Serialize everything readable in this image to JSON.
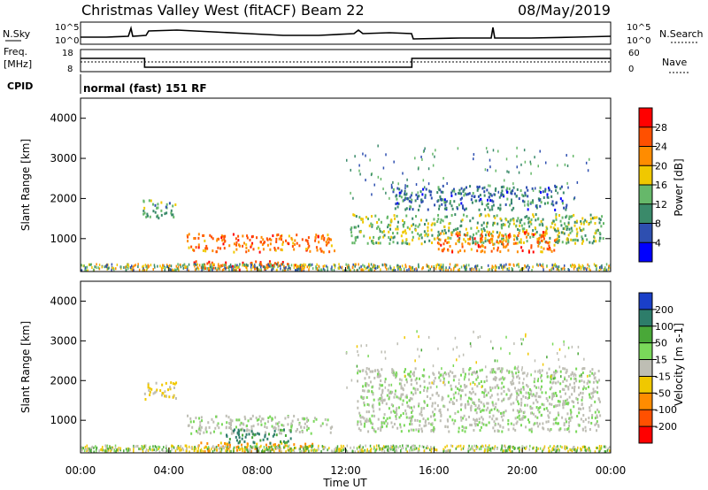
{
  "header": {
    "station": "Christmas Valley West (fitACF)",
    "beam": "Beam 22",
    "date": "08/May/2019"
  },
  "noise_panel": {
    "left_label": "N.Sky",
    "right_label": "N.Search",
    "tick_top": "10^5",
    "tick_bottom": "10^0"
  },
  "freq_panel": {
    "left_label_1": "Freq.",
    "left_label_2": "[MHz]",
    "left_tick_top": "18",
    "left_tick_bottom": "8",
    "right_label": "Nave",
    "right_tick_top": "60",
    "right_tick_bottom": "0"
  },
  "cpid_panel": {
    "label": "CPID",
    "value": "normal (fast) 151 RF"
  },
  "power_panel": {
    "ylabel": "Slant Range [km]",
    "yticks": [
      "1000",
      "2000",
      "3000",
      "4000"
    ],
    "cbar_label": "Power [dB]",
    "cbar_ticks": [
      "4",
      "8",
      "12",
      "16",
      "20",
      "24",
      "28"
    ],
    "cbar_colors": [
      "#0000ff",
      "#2e4fb0",
      "#3a8a6a",
      "#66b86a",
      "#f0c800",
      "#ff8c00",
      "#ff5000",
      "#ff0000"
    ]
  },
  "velocity_panel": {
    "ylabel": "Slant Range [km]",
    "yticks": [
      "1000",
      "2000",
      "3000",
      "4000"
    ],
    "cbar_label": "Velocity [m s-1]",
    "cbar_ticks": [
      "200",
      "100",
      "50",
      "15",
      "-15",
      "-50",
      "-100",
      "-200"
    ],
    "cbar_colors": [
      "#1a3fc8",
      "#2d7d6a",
      "#49a838",
      "#7ad85a",
      "#bebeb4",
      "#f0c800",
      "#ff8c00",
      "#ff5000",
      "#ff0000"
    ]
  },
  "x_axis": {
    "ticks": [
      "00:00",
      "04:00",
      "08:00",
      "12:00",
      "16:00",
      "20:00",
      "00:00"
    ],
    "label": "Time UT"
  },
  "chart_data": {
    "type": "heatmap",
    "x_range_hours": [
      0,
      24
    ],
    "y_range_km": [
      180,
      4500
    ],
    "frequency_mhz": [
      {
        "start_h": 0,
        "end_h": 2.9,
        "value": 14
      },
      {
        "start_h": 2.9,
        "end_h": 15.0,
        "value": 10
      },
      {
        "start_h": 15.0,
        "end_h": 24,
        "value": 14
      }
    ],
    "power_regions_db": [
      {
        "t0": 4.8,
        "t1": 11.5,
        "r0": 650,
        "r1": 1100,
        "value": 24
      },
      {
        "t0": 5.0,
        "t1": 10.0,
        "r0": 200,
        "r1": 420,
        "value": 28
      },
      {
        "t0": 2.8,
        "t1": 4.3,
        "r0": 1500,
        "r1": 1950,
        "value": 12
      },
      {
        "t0": 12.2,
        "t1": 23.7,
        "r0": 850,
        "r1": 1600,
        "value": 14
      },
      {
        "t0": 14.0,
        "t1": 22.0,
        "r0": 1700,
        "r1": 2300,
        "value": 8
      },
      {
        "t0": 16.0,
        "t1": 21.5,
        "r0": 650,
        "r1": 1150,
        "value": 24
      }
    ],
    "velocity_regions_ms": [
      {
        "t0": 4.8,
        "t1": 11.5,
        "r0": 650,
        "r1": 1100,
        "value": 0
      },
      {
        "t0": 5.0,
        "t1": 10.5,
        "r0": 200,
        "r1": 420,
        "value": -60
      },
      {
        "t0": 6.5,
        "t1": 9.5,
        "r0": 400,
        "r1": 750,
        "value": 60
      },
      {
        "t0": 12.5,
        "t1": 23.5,
        "r0": 700,
        "r1": 2300,
        "value": 0
      },
      {
        "t0": 2.8,
        "t1": 4.3,
        "r0": 1500,
        "r1": 1950,
        "value": -20
      }
    ]
  }
}
